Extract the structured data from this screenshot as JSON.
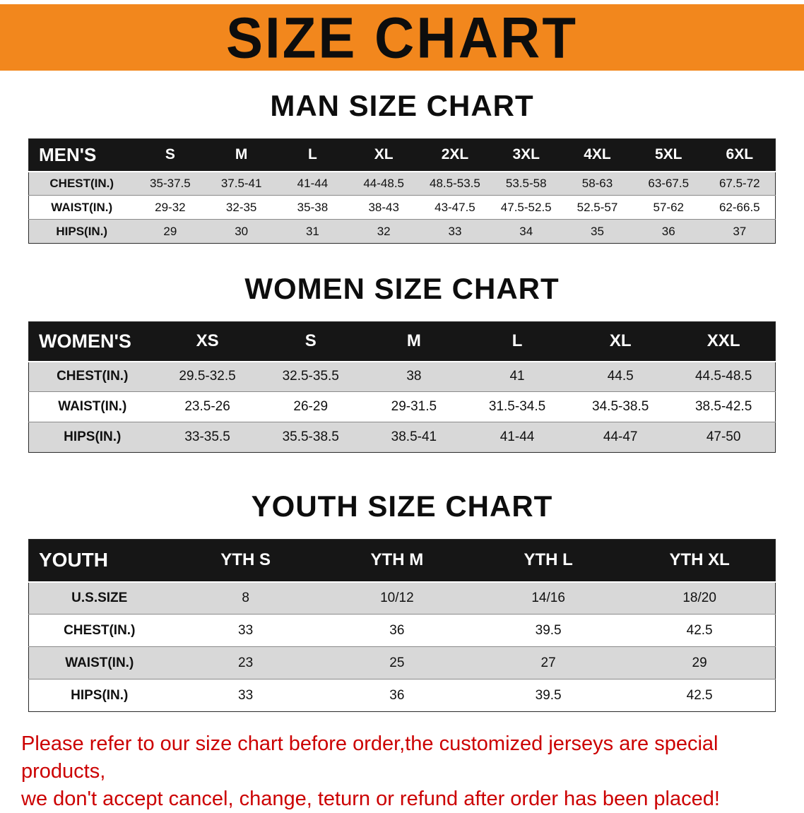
{
  "banner": {
    "title": "SIZE CHART"
  },
  "men": {
    "heading": "MAN SIZE CHART",
    "header": [
      "MEN'S",
      "S",
      "M",
      "L",
      "XL",
      "2XL",
      "3XL",
      "4XL",
      "5XL",
      "6XL"
    ],
    "rows": [
      {
        "label": "CHEST(IN.)",
        "values": [
          "35-37.5",
          "37.5-41",
          "41-44",
          "44-48.5",
          "48.5-53.5",
          "53.5-58",
          "58-63",
          "63-67.5",
          "67.5-72"
        ]
      },
      {
        "label": "WAIST(IN.)",
        "values": [
          "29-32",
          "32-35",
          "35-38",
          "38-43",
          "43-47.5",
          "47.5-52.5",
          "52.5-57",
          "57-62",
          "62-66.5"
        ]
      },
      {
        "label": "HIPS(IN.)",
        "values": [
          "29",
          "30",
          "31",
          "32",
          "33",
          "34",
          "35",
          "36",
          "37"
        ]
      }
    ]
  },
  "women": {
    "heading": "WOMEN SIZE CHART",
    "header": [
      "WOMEN'S",
      "XS",
      "S",
      "M",
      "L",
      "XL",
      "XXL"
    ],
    "rows": [
      {
        "label": "CHEST(IN.)",
        "values": [
          "29.5-32.5",
          "32.5-35.5",
          "38",
          "41",
          "44.5",
          "44.5-48.5"
        ]
      },
      {
        "label": "WAIST(IN.)",
        "values": [
          "23.5-26",
          "26-29",
          "29-31.5",
          "31.5-34.5",
          "34.5-38.5",
          "38.5-42.5"
        ]
      },
      {
        "label": "HIPS(IN.)",
        "values": [
          "33-35.5",
          "35.5-38.5",
          "38.5-41",
          "41-44",
          "44-47",
          "47-50"
        ]
      }
    ]
  },
  "youth": {
    "heading": "YOUTH SIZE CHART",
    "header": [
      "YOUTH",
      "YTH S",
      "YTH M",
      "YTH L",
      "YTH XL"
    ],
    "rows": [
      {
        "label": "U.S.SIZE",
        "values": [
          "8",
          "10/12",
          "14/16",
          "18/20"
        ]
      },
      {
        "label": "CHEST(IN.)",
        "values": [
          "33",
          "36",
          "39.5",
          "42.5"
        ]
      },
      {
        "label": "WAIST(IN.)",
        "values": [
          "23",
          "25",
          "27",
          "29"
        ]
      },
      {
        "label": "HIPS(IN.)",
        "values": [
          "33",
          "36",
          "39.5",
          "42.5"
        ]
      }
    ]
  },
  "footer": {
    "line1": "Please refer to our size chart before order,the customized jerseys are special products,",
    "line2": "we don't accept cancel, change, teturn or refund after order has been placed!"
  },
  "colors": {
    "banner_bg": "#f2871d",
    "table_header_bg": "#161616",
    "row_alt_gray": "#d8d8d8",
    "notice_red": "#cc0001"
  }
}
